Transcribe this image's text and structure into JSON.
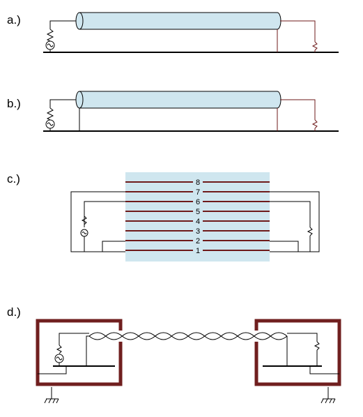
{
  "panels": {
    "a": {
      "label": "a.)"
    },
    "b": {
      "label": "b.)"
    },
    "c": {
      "label": "c.)",
      "conductors": [
        "8",
        "7",
        "6",
        "5",
        "4",
        "3",
        "2",
        "1"
      ]
    },
    "d": {
      "label": "d.)"
    }
  },
  "colors": {
    "cable_fill": "#cfe6ef",
    "shield_box": "#701f1f",
    "conductor": "#6e1a1a",
    "wire": "#000000"
  }
}
